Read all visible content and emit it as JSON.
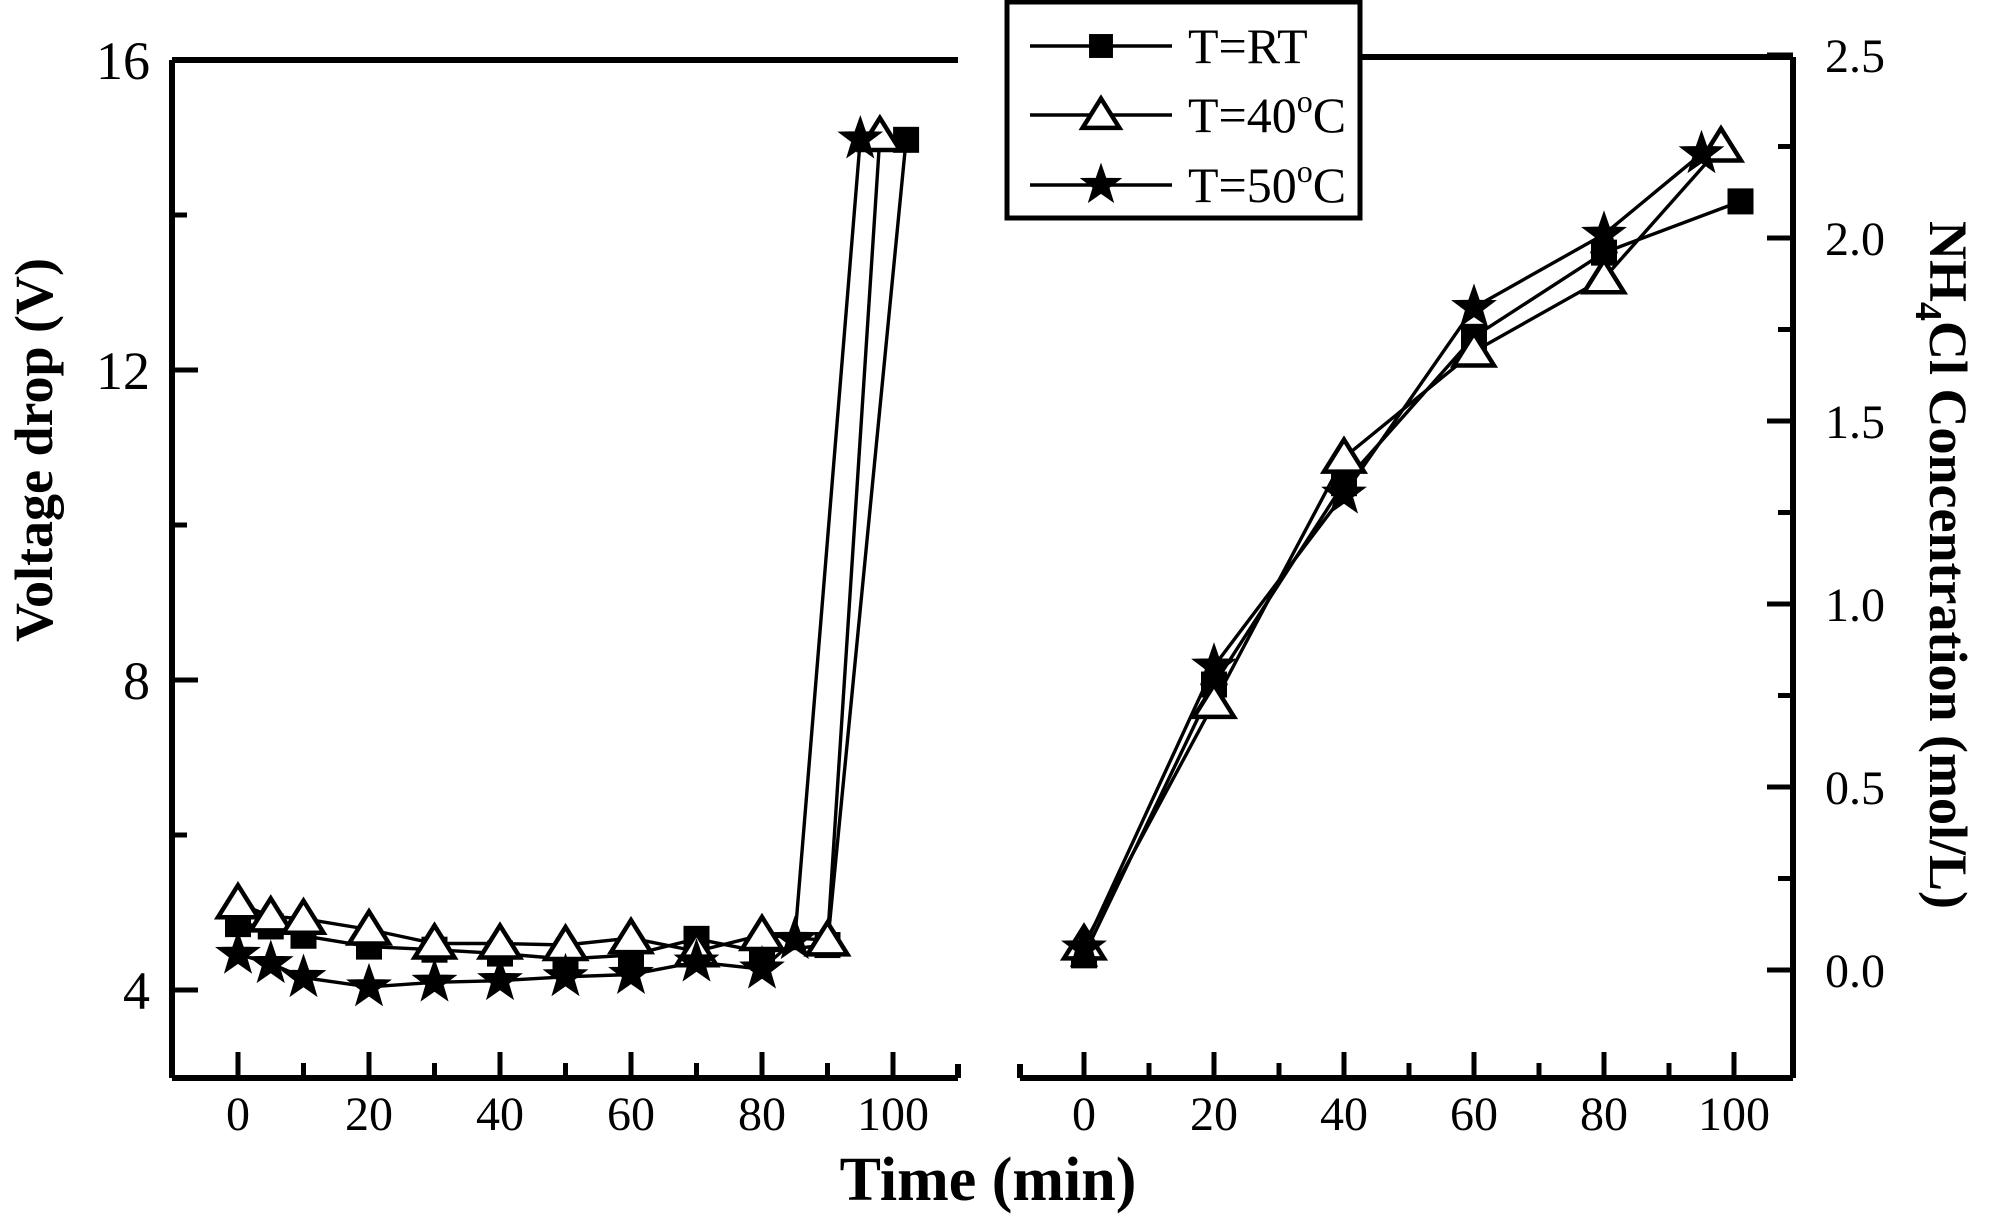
{
  "figure": {
    "type": "dual-panel-line-chart",
    "background": "#ffffff",
    "ink": "#000000",
    "shared_xlabel": "Time (min)"
  },
  "legend": {
    "position": "top-center",
    "items": [
      {
        "label": "T=RT",
        "marker": "square-filled"
      },
      {
        "label": "T=40°C",
        "marker": "triangle-open"
      },
      {
        "label": "T=50°C",
        "marker": "star-filled"
      }
    ]
  },
  "chart_data": [
    {
      "type": "line",
      "panel": "left",
      "title": "",
      "xlabel": "Time (min)",
      "ylabel": "Voltage drop (V)",
      "xlim": [
        -10,
        110
      ],
      "ylim": [
        2.9,
        16
      ],
      "xticks": [
        0,
        20,
        40,
        60,
        80,
        100
      ],
      "xticks_minor": [
        10,
        30,
        50,
        70,
        90
      ],
      "yticks": [
        4,
        8,
        12,
        16
      ],
      "yticks_minor": [
        6,
        10,
        14
      ],
      "grid": false,
      "series": [
        {
          "name": "T=RT",
          "marker": "square-filled",
          "points": [
            [
              0,
              4.85
            ],
            [
              5,
              4.82
            ],
            [
              10,
              4.7
            ],
            [
              20,
              4.56
            ],
            [
              30,
              4.52
            ],
            [
              40,
              4.47
            ],
            [
              50,
              4.4
            ],
            [
              60,
              4.45
            ],
            [
              70,
              4.66
            ],
            [
              80,
              4.49
            ],
            [
              90,
              4.58
            ],
            [
              102,
              14.97
            ]
          ]
        },
        {
          "name": "T=40°C",
          "marker": "triangle-open",
          "points": [
            [
              0,
              5.12
            ],
            [
              5,
              4.95
            ],
            [
              10,
              4.92
            ],
            [
              20,
              4.78
            ],
            [
              30,
              4.6
            ],
            [
              40,
              4.6
            ],
            [
              50,
              4.58
            ],
            [
              60,
              4.67
            ],
            [
              70,
              4.5
            ],
            [
              80,
              4.71
            ],
            [
              90,
              4.64
            ],
            [
              98,
              15.02
            ]
          ]
        },
        {
          "name": "T=50°C",
          "marker": "star-filled",
          "points": [
            [
              0,
              4.46
            ],
            [
              5,
              4.34
            ],
            [
              10,
              4.16
            ],
            [
              20,
              4.04
            ],
            [
              30,
              4.1
            ],
            [
              40,
              4.12
            ],
            [
              50,
              4.17
            ],
            [
              60,
              4.2
            ],
            [
              70,
              4.36
            ],
            [
              80,
              4.27
            ],
            [
              85,
              4.65
            ],
            [
              95,
              14.98
            ]
          ]
        }
      ]
    },
    {
      "type": "line",
      "panel": "right",
      "title": "",
      "xlabel": "Time (min)",
      "ylabel": "NH4Cl Concentration (mol/L)",
      "ylabel_parts": [
        {
          "t": "NH"
        },
        {
          "t": "4",
          "sub": true
        },
        {
          "t": "Cl Concentration (mol/L)"
        }
      ],
      "xlim": [
        -10,
        109
      ],
      "ylim": [
        -0.3,
        2.5
      ],
      "xticks": [
        0,
        20,
        40,
        60,
        80,
        100
      ],
      "xticks_minor": [
        10,
        30,
        50,
        70,
        90
      ],
      "yticks": [
        0.0,
        0.5,
        1.0,
        1.5,
        2.0,
        2.5
      ],
      "yticks_minor": [
        0.25,
        0.75,
        1.25,
        1.75,
        2.25
      ],
      "grid": false,
      "series": [
        {
          "name": "T=RT",
          "marker": "square-filled",
          "points": [
            [
              0,
              0.04
            ],
            [
              20,
              0.78
            ],
            [
              40,
              1.33
            ],
            [
              60,
              1.73
            ],
            [
              80,
              1.96
            ],
            [
              101,
              2.1
            ]
          ]
        },
        {
          "name": "T=40°C",
          "marker": "triangle-open",
          "points": [
            [
              0,
              0.07
            ],
            [
              20,
              0.73
            ],
            [
              40,
              1.4
            ],
            [
              60,
              1.69
            ],
            [
              80,
              1.89
            ],
            [
              98,
              2.25
            ]
          ]
        },
        {
          "name": "T=50°C",
          "marker": "star-filled",
          "points": [
            [
              0,
              0.06
            ],
            [
              20,
              0.83
            ],
            [
              40,
              1.3
            ],
            [
              60,
              1.81
            ],
            [
              80,
              2.01
            ],
            [
              95,
              2.23
            ]
          ]
        }
      ]
    }
  ]
}
